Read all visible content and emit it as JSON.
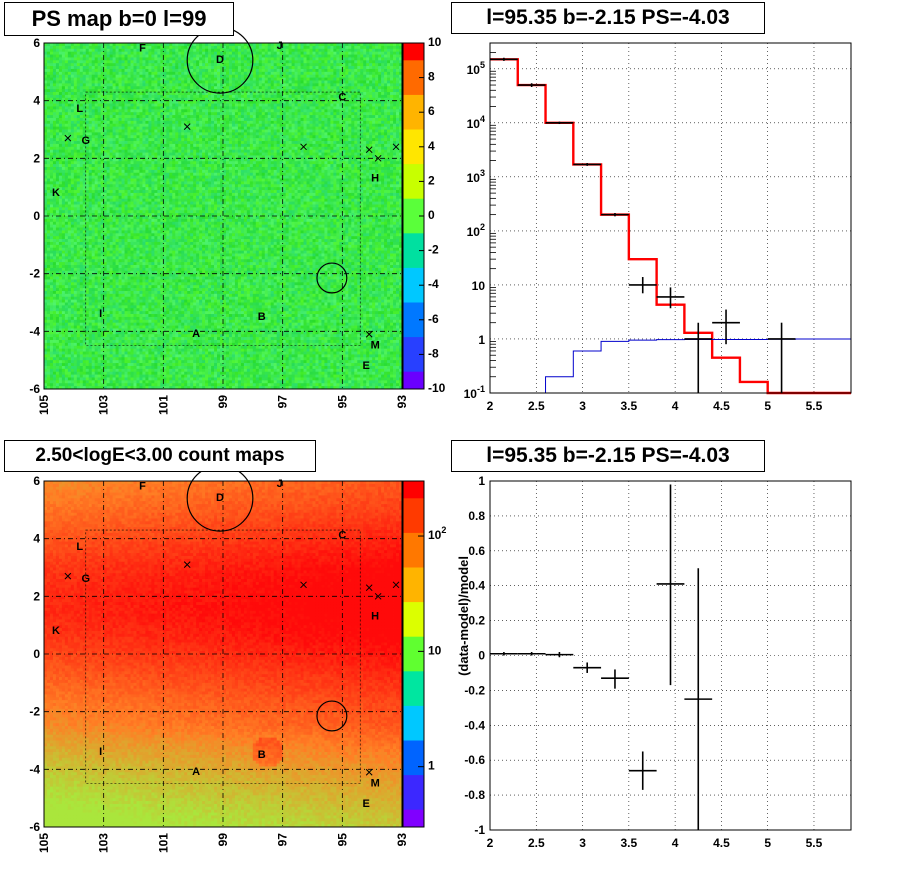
{
  "panels": {
    "ps_map": {
      "title": "PS map b=0 l=99"
    },
    "spectrum": {
      "title": "l=95.35 b=-2.15 PS=-4.03"
    },
    "count_map": {
      "title": "2.50<logE<3.00 count maps"
    },
    "residual": {
      "title": "l=95.35 b=-2.15 PS=-4.03"
    }
  },
  "chart_data": [
    {
      "type": "heatmap",
      "name": "ps-map",
      "x_ticks": [
        "105",
        "103",
        "101",
        "99",
        "97",
        "95",
        "93"
      ],
      "x_tick_values": [
        105,
        103,
        101,
        99,
        97,
        95,
        93
      ],
      "y_ticks": [
        "6",
        "4",
        "2",
        "0",
        "-2",
        "-4",
        "-6"
      ],
      "y_tick_values": [
        6,
        4,
        2,
        0,
        -2,
        -4,
        -6
      ],
      "xlim": [
        105,
        93
      ],
      "ylim": [
        -6,
        6
      ],
      "colorbar_ticks": [
        "10",
        "8",
        "6",
        "4",
        "2",
        "0",
        "-2",
        "-4",
        "-6",
        "-8",
        "-10"
      ],
      "colorbar_range": [
        -10,
        10
      ],
      "base_color": "#3fe83f",
      "labels": [
        {
          "text": "F",
          "l": 101.7,
          "b": 5.7
        },
        {
          "text": "D",
          "l": 99.1,
          "b": 5.3
        },
        {
          "text": "J",
          "l": 97.1,
          "b": 5.8
        },
        {
          "text": "C",
          "l": 95.0,
          "b": 4.0
        },
        {
          "text": "L",
          "l": 103.8,
          "b": 3.6
        },
        {
          "text": "G",
          "l": 103.6,
          "b": 2.5
        },
        {
          "text": "H",
          "l": 93.9,
          "b": 1.2
        },
        {
          "text": "K",
          "l": 104.6,
          "b": 0.7
        },
        {
          "text": "I",
          "l": 103.1,
          "b": -3.5
        },
        {
          "text": "B",
          "l": 97.7,
          "b": -3.6
        },
        {
          "text": "A",
          "l": 99.9,
          "b": -4.2
        },
        {
          "text": "M",
          "l": 93.9,
          "b": -4.6
        },
        {
          "text": "E",
          "l": 94.2,
          "b": -5.3
        }
      ],
      "crosses": [
        {
          "l": 104.2,
          "b": 2.7
        },
        {
          "l": 100.2,
          "b": 3.1
        },
        {
          "l": 96.3,
          "b": 2.4
        },
        {
          "l": 94.1,
          "b": 2.3
        },
        {
          "l": 93.8,
          "b": 2.0
        },
        {
          "l": 93.2,
          "b": 2.4
        },
        {
          "l": 94.1,
          "b": -4.1
        }
      ],
      "circles": [
        {
          "l": 99.1,
          "b": 5.4,
          "r_deg": 1.1
        },
        {
          "l": 95.35,
          "b": -2.15,
          "r_deg": 0.5
        }
      ]
    },
    {
      "type": "line",
      "name": "spectrum",
      "x_ticks": [
        "2",
        "2.5",
        "3",
        "3.5",
        "4",
        "4.5",
        "5",
        "5.5"
      ],
      "x_tick_values": [
        2,
        2.5,
        3,
        3.5,
        4,
        4.5,
        5,
        5.5
      ],
      "xlim": [
        2,
        5.9
      ],
      "y_scale": "log",
      "ylim": [
        0.1,
        300000
      ],
      "y_ticks": [
        "10^-1",
        "1",
        "10",
        "10^2",
        "10^3",
        "10^4",
        "10^5"
      ],
      "y_tick_values": [
        0.1,
        1,
        10,
        100,
        1000,
        10000,
        100000
      ],
      "grid": true,
      "series": [
        {
          "style": "step",
          "color": "#ff0000",
          "edges": [
            2.0,
            2.3,
            2.6,
            2.9,
            3.2,
            3.5,
            3.8,
            4.1,
            4.4,
            4.7,
            5.0,
            5.3,
            5.9
          ],
          "values": [
            150000,
            50000,
            10000,
            1700,
            200,
            30,
            4.3,
            1.3,
            0.45,
            0.16,
            0.1,
            0.1
          ]
        },
        {
          "style": "step",
          "color": "#0000cc",
          "edges": [
            2.0,
            2.3,
            2.6,
            2.9,
            3.2,
            3.5,
            3.8,
            4.1,
            4.4,
            4.7,
            5.0,
            5.3,
            5.9
          ],
          "values": [
            0.05,
            0.05,
            0.2,
            0.6,
            0.9,
            0.95,
            0.97,
            0.98,
            0.98,
            0.98,
            0.99,
            1.0
          ]
        },
        {
          "style": "errorbars",
          "color": "#000000",
          "points": [
            {
              "x": 2.15,
              "y": 150000,
              "xerr": 0.15,
              "ylo": 140000,
              "yhi": 160000
            },
            {
              "x": 2.45,
              "y": 50000,
              "xerr": 0.15,
              "ylo": 46000,
              "yhi": 54000
            },
            {
              "x": 2.75,
              "y": 10000,
              "xerr": 0.15,
              "ylo": 9500,
              "yhi": 10500
            },
            {
              "x": 3.05,
              "y": 1700,
              "xerr": 0.15,
              "ylo": 1600,
              "yhi": 1800
            },
            {
              "x": 3.35,
              "y": 200,
              "xerr": 0.15,
              "ylo": 186,
              "yhi": 214
            },
            {
              "x": 3.65,
              "y": 10,
              "xerr": 0.15,
              "ylo": 7,
              "yhi": 14
            },
            {
              "x": 3.95,
              "y": 6,
              "xerr": 0.15,
              "ylo": 3.7,
              "yhi": 9
            },
            {
              "x": 4.25,
              "y": 1,
              "xerr": 0.15,
              "ylo": 0.1,
              "yhi": 2
            },
            {
              "x": 4.55,
              "y": 2,
              "xerr": 0.15,
              "ylo": 0.8,
              "yhi": 3.5
            },
            {
              "x": 5.15,
              "y": 1,
              "xerr": 0.15,
              "ylo": 0.1,
              "yhi": 2
            }
          ]
        }
      ]
    },
    {
      "type": "heatmap",
      "name": "count-map",
      "x_ticks": [
        "105",
        "103",
        "101",
        "99",
        "97",
        "95",
        "93"
      ],
      "x_tick_values": [
        105,
        103,
        101,
        99,
        97,
        95,
        93
      ],
      "y_ticks": [
        "6",
        "4",
        "2",
        "0",
        "-2",
        "-4",
        "-6"
      ],
      "y_tick_values": [
        6,
        4,
        2,
        0,
        -2,
        -4,
        -6
      ],
      "xlim": [
        105,
        93
      ],
      "ylim": [
        -6,
        6
      ],
      "colorbar_scale": "log",
      "colorbar_ticks": [
        "10^2",
        "10",
        "1"
      ],
      "colorbar_tick_values": [
        100,
        10,
        1
      ],
      "colorbar_range": [
        0.3,
        300
      ],
      "labels": [
        {
          "text": "F",
          "l": 101.7,
          "b": 5.7
        },
        {
          "text": "D",
          "l": 99.1,
          "b": 5.3
        },
        {
          "text": "J",
          "l": 97.1,
          "b": 5.8
        },
        {
          "text": "C",
          "l": 95.0,
          "b": 4.0
        },
        {
          "text": "L",
          "l": 103.8,
          "b": 3.6
        },
        {
          "text": "G",
          "l": 103.6,
          "b": 2.5
        },
        {
          "text": "H",
          "l": 93.9,
          "b": 1.2
        },
        {
          "text": "K",
          "l": 104.6,
          "b": 0.7
        },
        {
          "text": "I",
          "l": 103.1,
          "b": -3.5
        },
        {
          "text": "B",
          "l": 97.7,
          "b": -3.6
        },
        {
          "text": "A",
          "l": 99.9,
          "b": -4.2
        },
        {
          "text": "M",
          "l": 93.9,
          "b": -4.6
        },
        {
          "text": "E",
          "l": 94.2,
          "b": -5.3
        }
      ],
      "crosses": [
        {
          "l": 104.2,
          "b": 2.7
        },
        {
          "l": 100.2,
          "b": 3.1
        },
        {
          "l": 96.3,
          "b": 2.4
        },
        {
          "l": 94.1,
          "b": 2.3
        },
        {
          "l": 93.8,
          "b": 2.0
        },
        {
          "l": 93.2,
          "b": 2.4
        },
        {
          "l": 94.1,
          "b": -4.1
        }
      ],
      "circles": [
        {
          "l": 99.1,
          "b": 5.4,
          "r_deg": 1.1
        },
        {
          "l": 95.35,
          "b": -2.15,
          "r_deg": 0.5
        }
      ]
    },
    {
      "type": "scatter",
      "name": "residual",
      "ylabel": "(data-model)/model",
      "x_ticks": [
        "2",
        "2.5",
        "3",
        "3.5",
        "4",
        "4.5",
        "5",
        "5.5"
      ],
      "x_tick_values": [
        2,
        2.5,
        3,
        3.5,
        4,
        4.5,
        5,
        5.5
      ],
      "xlim": [
        2,
        5.9
      ],
      "y_ticks": [
        "1",
        "0.8",
        "0.6",
        "0.4",
        "0.2",
        "0",
        "-0.2",
        "-0.4",
        "-0.6",
        "-0.8",
        "-1"
      ],
      "y_tick_values": [
        1,
        0.8,
        0.6,
        0.4,
        0.2,
        0,
        -0.2,
        -0.4,
        -0.6,
        -0.8,
        -1
      ],
      "ylim": [
        -1,
        1
      ],
      "grid": true,
      "points": [
        {
          "x": 2.15,
          "y": 0.01,
          "xerr": 0.15,
          "ylo": 0.0,
          "yhi": 0.02
        },
        {
          "x": 2.45,
          "y": 0.01,
          "xerr": 0.15,
          "ylo": 0.0,
          "yhi": 0.02
        },
        {
          "x": 2.75,
          "y": 0.005,
          "xerr": 0.15,
          "ylo": -0.01,
          "yhi": 0.02
        },
        {
          "x": 3.05,
          "y": -0.07,
          "xerr": 0.15,
          "ylo": -0.1,
          "yhi": -0.04
        },
        {
          "x": 3.35,
          "y": -0.13,
          "xerr": 0.15,
          "ylo": -0.19,
          "yhi": -0.08
        },
        {
          "x": 3.65,
          "y": -0.66,
          "xerr": 0.15,
          "ylo": -0.77,
          "yhi": -0.55
        },
        {
          "x": 3.95,
          "y": 0.41,
          "xerr": 0.15,
          "ylo": -0.17,
          "yhi": 0.98
        },
        {
          "x": 4.25,
          "y": -0.25,
          "xerr": 0.15,
          "ylo": -1.0,
          "yhi": 0.5
        }
      ]
    }
  ]
}
